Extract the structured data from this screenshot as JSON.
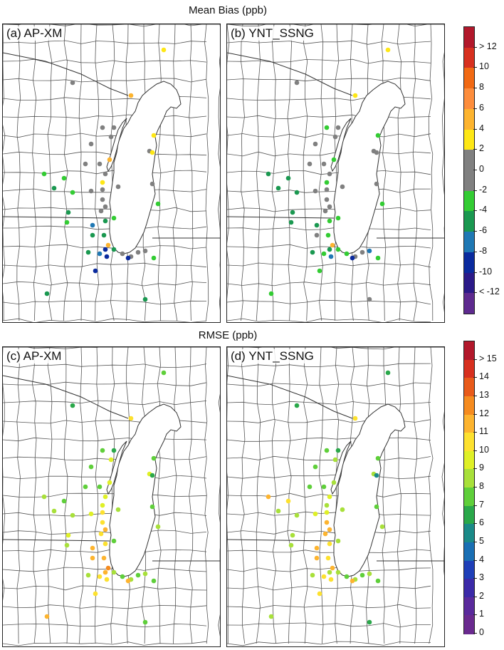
{
  "figure": {
    "top_title": "Mean Bias (ppb)",
    "bottom_title": "RMSE (ppb)"
  },
  "panels": [
    {
      "id": "a",
      "label": "(a) AP-XM"
    },
    {
      "id": "b",
      "label": "(b) YNT_SSNG"
    },
    {
      "id": "c",
      "label": "(c) AP-XM"
    },
    {
      "id": "d",
      "label": "(d) YNT_SSNG"
    }
  ],
  "colorbars": {
    "bias": {
      "labels": [
        "> 12",
        "10",
        "8",
        "6",
        "4",
        "2",
        "0",
        "-2",
        "-4",
        "-6",
        "-8",
        "-10",
        "< -12"
      ],
      "colors": [
        "#b2182b",
        "#d7301f",
        "#f16913",
        "#fd8d3c",
        "#fdb42f",
        "#fee715",
        "#808080",
        "#808080",
        "#33cc33",
        "#1a9850",
        "#1f78b4",
        "#0a2a9e",
        "#2b1a88",
        "#5e2a8f"
      ]
    },
    "rmse": {
      "labels": [
        "> 15",
        "14",
        "13",
        "12",
        "11",
        "10",
        "9",
        "8",
        "7",
        "6",
        "5",
        "4",
        "3",
        "2",
        "1",
        "0"
      ],
      "colors": [
        "#b2182b",
        "#d7301f",
        "#e85a1a",
        "#f58b1f",
        "#fdb42f",
        "#fde12f",
        "#dff027",
        "#a8e03a",
        "#5fcf3a",
        "#2aa84a",
        "#1b8a88",
        "#1a6fb4",
        "#1f3fb8",
        "#3b2aa8",
        "#5a2a9c",
        "#6a2a8f"
      ]
    }
  }
}
